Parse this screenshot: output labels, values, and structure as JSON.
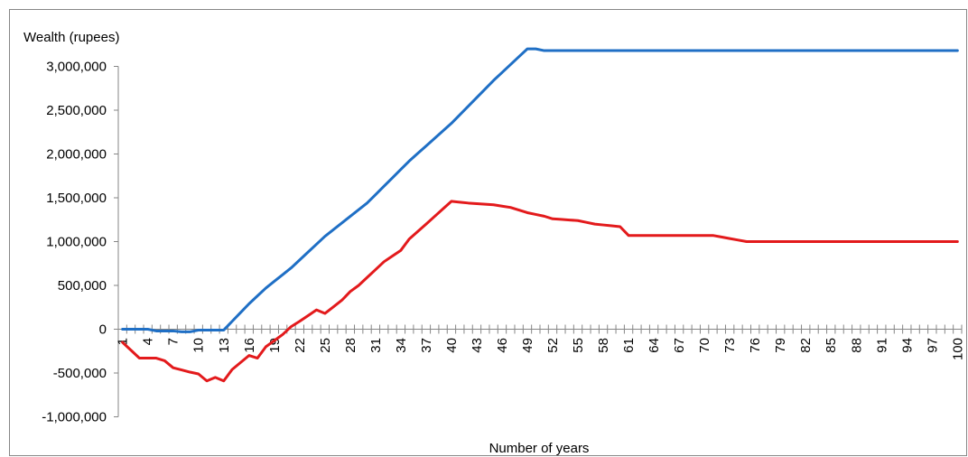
{
  "chart_data": {
    "type": "line",
    "title": "",
    "ylabel": "Wealth (rupees)",
    "xlabel": "Number of years",
    "ylim": [
      -1000000,
      3000000
    ],
    "yticks": [
      -1000000,
      -500000,
      0,
      500000,
      1000000,
      1500000,
      2000000,
      2500000,
      3000000
    ],
    "ytick_labels": [
      "-1,000,000",
      "-500,000",
      "0",
      "500,000",
      "1,000,000",
      "1,500,000",
      "2,000,000",
      "2,500,000",
      "3,000,000"
    ],
    "x_range": [
      1,
      100
    ],
    "xtick_labels": [
      "1",
      "4",
      "7",
      "10",
      "13",
      "16",
      "19",
      "22",
      "25",
      "28",
      "31",
      "34",
      "37",
      "40",
      "43",
      "46",
      "49",
      "52",
      "55",
      "58",
      "61",
      "64",
      "67",
      "70",
      "73",
      "76",
      "79",
      "82",
      "85",
      "88",
      "91",
      "94",
      "97",
      "100"
    ],
    "grid": false,
    "legend": "none",
    "series": [
      {
        "color": "#1f6fc5",
        "points": [
          [
            1,
            0
          ],
          [
            4,
            0
          ],
          [
            5,
            -20000
          ],
          [
            7,
            -20000
          ],
          [
            8,
            -30000
          ],
          [
            9,
            -30000
          ],
          [
            10,
            -10000
          ],
          [
            13,
            -10000
          ],
          [
            16,
            290000
          ],
          [
            18,
            470000
          ],
          [
            21,
            700000
          ],
          [
            25,
            1060000
          ],
          [
            30,
            1440000
          ],
          [
            35,
            1920000
          ],
          [
            40,
            2350000
          ],
          [
            45,
            2840000
          ],
          [
            49,
            3200000
          ],
          [
            50,
            3200000
          ],
          [
            51,
            3180000
          ],
          [
            100,
            3180000
          ]
        ]
      },
      {
        "color": "#e31a1c",
        "points": [
          [
            1,
            -150000
          ],
          [
            3,
            -330000
          ],
          [
            5,
            -330000
          ],
          [
            6,
            -360000
          ],
          [
            7,
            -440000
          ],
          [
            9,
            -490000
          ],
          [
            10,
            -510000
          ],
          [
            11,
            -590000
          ],
          [
            12,
            -550000
          ],
          [
            13,
            -590000
          ],
          [
            14,
            -460000
          ],
          [
            16,
            -300000
          ],
          [
            17,
            -330000
          ],
          [
            18,
            -200000
          ],
          [
            20,
            -60000
          ],
          [
            21,
            30000
          ],
          [
            22,
            90000
          ],
          [
            24,
            220000
          ],
          [
            25,
            180000
          ],
          [
            27,
            330000
          ],
          [
            28,
            430000
          ],
          [
            29,
            500000
          ],
          [
            31,
            680000
          ],
          [
            32,
            770000
          ],
          [
            34,
            900000
          ],
          [
            35,
            1030000
          ],
          [
            37,
            1200000
          ],
          [
            40,
            1460000
          ],
          [
            42,
            1440000
          ],
          [
            45,
            1420000
          ],
          [
            47,
            1390000
          ],
          [
            49,
            1330000
          ],
          [
            50,
            1310000
          ],
          [
            51,
            1290000
          ],
          [
            52,
            1260000
          ],
          [
            55,
            1240000
          ],
          [
            57,
            1200000
          ],
          [
            60,
            1170000
          ],
          [
            61,
            1070000
          ],
          [
            71,
            1070000
          ],
          [
            75,
            1000000
          ],
          [
            100,
            1000000
          ]
        ]
      }
    ]
  }
}
